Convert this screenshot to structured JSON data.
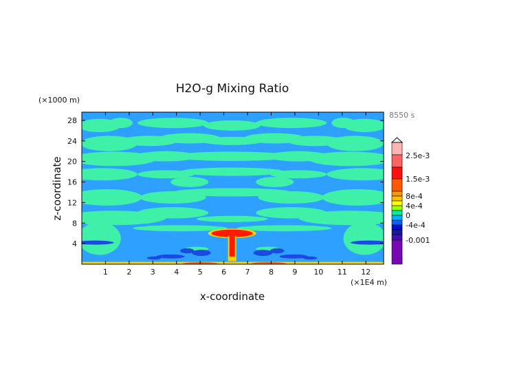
{
  "chart_data": {
    "type": "heatmap",
    "title": "H2O-g Mixing Ratio",
    "xlabel": "x-coordinate",
    "ylabel": "z-coordinate",
    "x_unit": "(×1E4 m)",
    "y_unit": "(×1000 m)",
    "time_label": "8550 s",
    "xlim": [
      0,
      12.75
    ],
    "ylim": [
      0,
      29.6
    ],
    "x_ticks": [
      1,
      2,
      3,
      4,
      5,
      6,
      7,
      8,
      9,
      10,
      11,
      12
    ],
    "y_ticks": [
      4,
      8,
      12,
      16,
      20,
      24,
      28
    ],
    "colorbar": {
      "tick_labels": [
        "2.5e-3",
        "1.5e-3",
        "8e-4",
        "4e-4",
        "0",
        "-4e-4",
        "-0.001"
      ],
      "tick_values": [
        0.0025,
        0.0015,
        0.0008,
        0.0004,
        0,
        -0.0004,
        -0.001
      ],
      "levels_top_to_bottom": [
        {
          "color": "#ffb4b4"
        },
        {
          "color": "#ff6464"
        },
        {
          "color": "#ff1010"
        },
        {
          "color": "#ff5a00"
        },
        {
          "color": "#ff9600"
        },
        {
          "color": "#ffbe00"
        },
        {
          "color": "#ffff00"
        },
        {
          "color": "#9cff00"
        },
        {
          "color": "#00f0a0"
        },
        {
          "color": "#00b4ff"
        },
        {
          "color": "#0064ff"
        },
        {
          "color": "#0010d0"
        },
        {
          "color": "#1818a0"
        },
        {
          "color": "#4010b0"
        },
        {
          "color": "#7808b4"
        }
      ]
    },
    "colors": {
      "background_field": "#2ea0ff",
      "positive_field": "#3ff0a8",
      "negative_field": "#1a4ae0",
      "plume_core": "#ff1a00",
      "plume_edge": "#ffd000"
    }
  }
}
